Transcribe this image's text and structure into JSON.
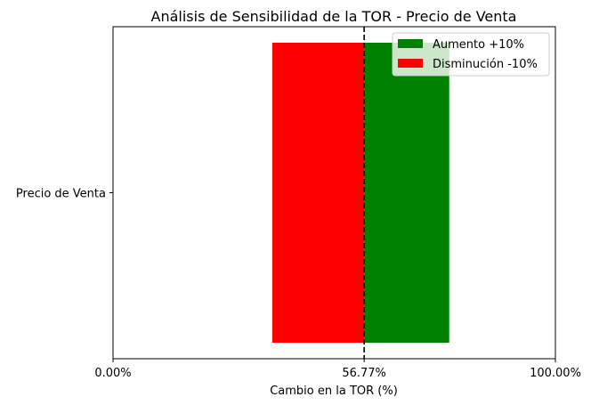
{
  "chart_data": {
    "type": "bar",
    "orientation": "horizontal",
    "title": "Análisis de Sensibilidad de la TOR - Precio de Venta",
    "xlabel": "Cambio en la TOR (%)",
    "ylabel": "",
    "categories": [
      "Precio de Venta"
    ],
    "xlim": [
      0,
      100
    ],
    "x_ticks": [
      {
        "value": 0,
        "label": "0.00%"
      },
      {
        "value": 56.77,
        "label": "56.77%"
      },
      {
        "value": 100,
        "label": "100.00%"
      }
    ],
    "baseline": {
      "value": 56.77,
      "style": "dashed",
      "color": "#000000"
    },
    "series": [
      {
        "name": "Aumento +10%",
        "color": "#008000",
        "start": 56.77,
        "end": 76.0
      },
      {
        "name": "Disminución -10%",
        "color": "#ff0000",
        "start": 36.0,
        "end": 56.77
      }
    ],
    "legend": {
      "position": "top-right"
    },
    "grid": false
  }
}
